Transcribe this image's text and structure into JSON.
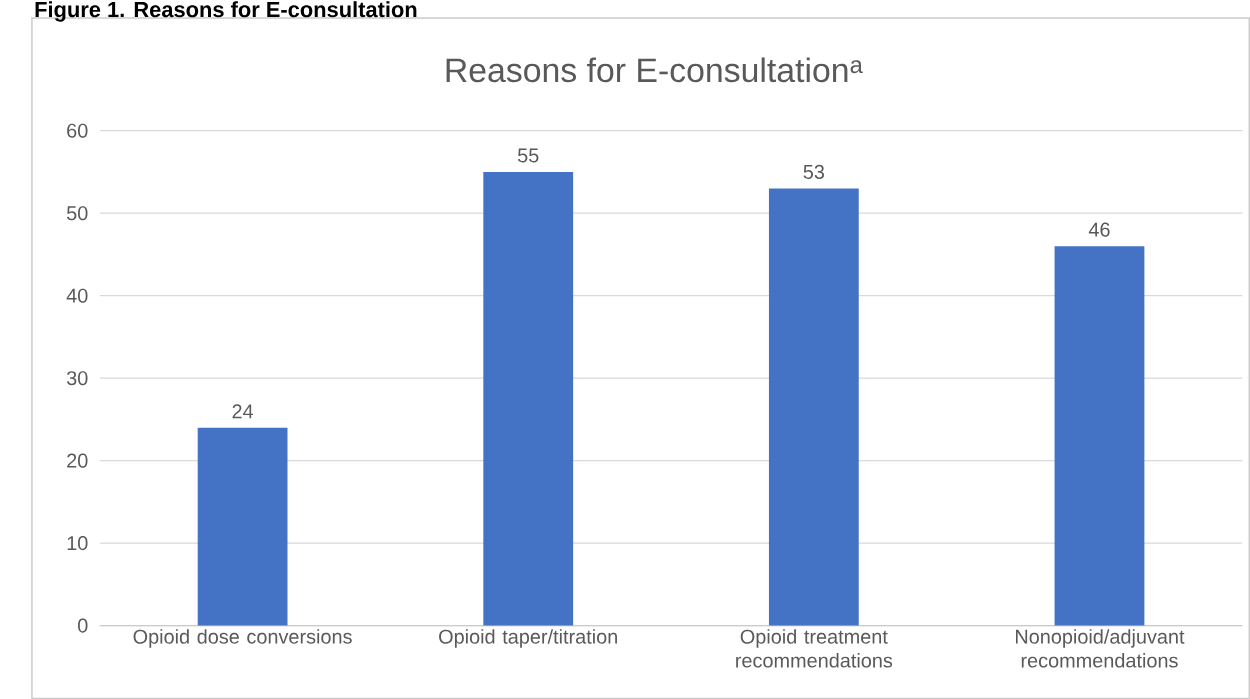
{
  "chart_data": {
    "type": "bar",
    "title": "Reasons for E-consultation$^{a}$",
    "categories": [
      "Opioid dose conversions",
      "Opioid taper/titration",
      "Opioid treatment recommendations",
      "Nonopioid/adjuvant recommendations"
    ],
    "values": [
      24,
      55,
      53,
      46
    ],
    "color": "#4472c4",
    "ylim": [
      0,
      60
    ],
    "yticks": [
      0,
      10,
      20,
      30,
      40,
      50,
      60
    ],
    "grid": "y",
    "data_labels": true,
    "annotations": [
      "Figure 1. Reasons for E-consultation"
    ]
  }
}
